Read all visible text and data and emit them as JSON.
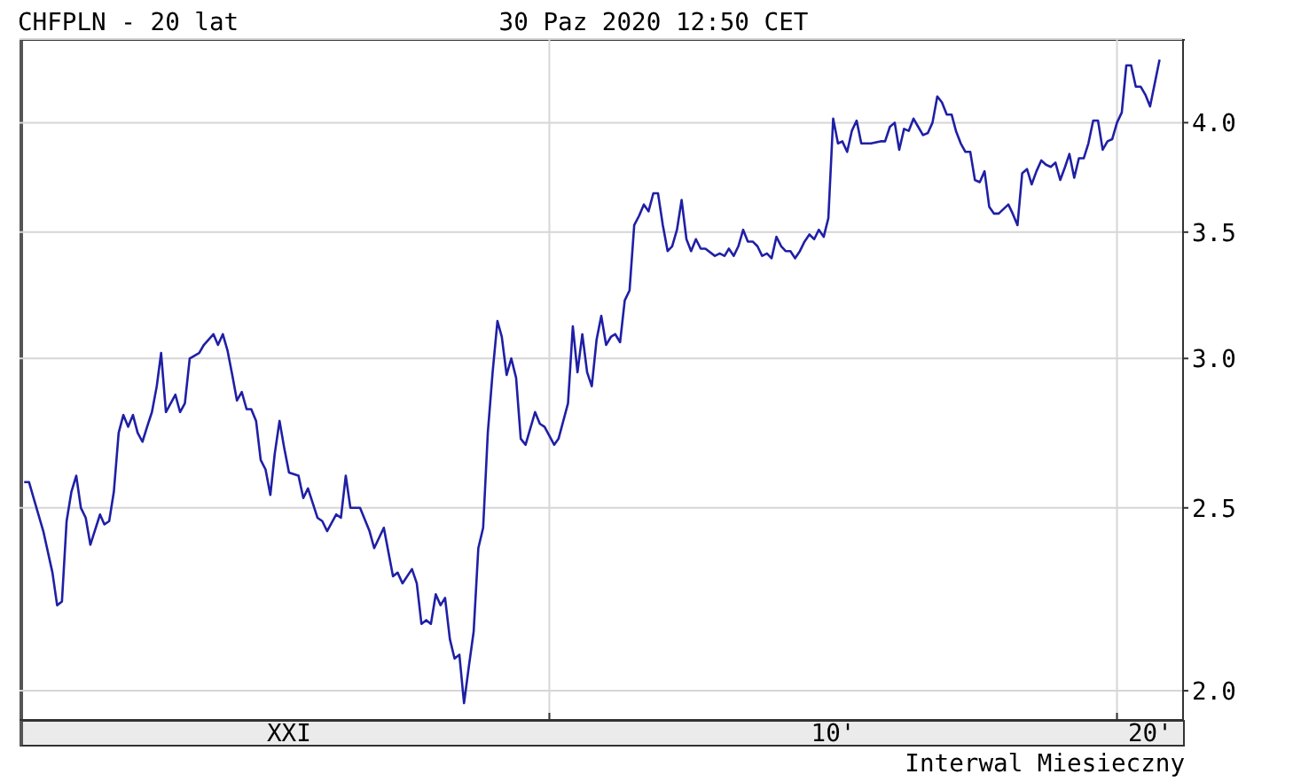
{
  "chart_data": {
    "type": "line",
    "title": "CHFPLN - 20 lat",
    "subtitle": "30 Paz 2020 12:50 CET",
    "annotations": [
      "Interwal Miesieczny"
    ],
    "x": [
      "2000-10",
      "2000-11",
      "2000-12",
      "2001-02",
      "2001-04",
      "2001-05",
      "2001-06",
      "2001-07",
      "2001-08",
      "2001-09",
      "2001-10",
      "2001-11",
      "2001-12",
      "2002-02",
      "2002-03",
      "2002-04",
      "2002-05",
      "2002-06",
      "2002-07",
      "2002-08",
      "2002-09",
      "2002-10",
      "2002-11",
      "2002-12",
      "2003-01",
      "2003-02",
      "2003-03",
      "2003-04",
      "2003-06",
      "2003-07",
      "2003-08",
      "2003-09",
      "2003-11",
      "2003-12",
      "2004-02",
      "2004-03",
      "2004-04",
      "2004-05",
      "2004-06",
      "2004-07",
      "2004-08",
      "2004-09",
      "2004-10",
      "2004-11",
      "2004-12",
      "2005-01",
      "2005-02",
      "2005-03",
      "2005-04",
      "2005-05",
      "2005-06",
      "2005-08",
      "2005-09",
      "2005-10",
      "2005-12",
      "2006-01",
      "2006-02",
      "2006-04",
      "2006-05",
      "2006-06",
      "2006-07",
      "2006-09",
      "2006-11",
      "2006-12",
      "2007-02",
      "2007-04",
      "2007-05",
      "2007-06",
      "2007-08",
      "2007-09",
      "2007-10",
      "2007-11",
      "2007-12",
      "2008-01",
      "2008-02",
      "2008-03",
      "2008-04",
      "2008-05",
      "2008-06",
      "2008-07",
      "2008-08",
      "2008-09",
      "2008-10",
      "2008-11",
      "2008-12",
      "2009-01",
      "2009-02",
      "2009-03",
      "2009-04",
      "2009-05",
      "2009-06",
      "2009-07",
      "2009-08",
      "2009-10",
      "2009-11",
      "2009-12",
      "2010-02",
      "2010-03",
      "2010-05",
      "2010-06",
      "2010-07",
      "2010-08",
      "2010-09",
      "2010-10",
      "2010-11",
      "2010-12",
      "2011-01",
      "2011-02",
      "2011-03",
      "2011-04",
      "2011-05",
      "2011-06",
      "2011-07",
      "2011-08",
      "2011-09",
      "2011-10",
      "2011-11",
      "2011-12",
      "2012-01",
      "2012-02",
      "2012-03",
      "2012-04",
      "2012-05",
      "2012-06",
      "2012-07",
      "2012-08",
      "2012-09",
      "2012-10",
      "2012-12",
      "2013-01",
      "2013-02",
      "2013-03",
      "2013-04",
      "2013-05",
      "2013-06",
      "2013-07",
      "2013-08",
      "2013-09",
      "2013-10",
      "2013-11",
      "2013-12",
      "2014-01",
      "2014-02",
      "2014-03",
      "2014-04",
      "2014-05",
      "2014-06",
      "2014-07",
      "2014-08",
      "2014-09",
      "2014-10",
      "2014-11",
      "2014-12",
      "2015-01",
      "2015-02",
      "2015-03",
      "2015-04",
      "2015-05",
      "2015-06",
      "2015-07",
      "2015-09",
      "2015-11",
      "2015-12",
      "2016-01",
      "2016-02",
      "2016-03",
      "2016-04",
      "2016-05",
      "2016-06",
      "2016-07",
      "2016-08",
      "2016-09",
      "2016-10",
      "2016-11",
      "2016-12",
      "2017-01",
      "2017-02",
      "2017-03",
      "2017-04",
      "2017-05",
      "2017-06",
      "2017-07",
      "2017-08",
      "2017-09",
      "2017-10",
      "2017-11",
      "2017-12",
      "2018-02",
      "2018-03",
      "2018-04",
      "2018-05",
      "2018-06",
      "2018-07",
      "2018-08",
      "2018-09",
      "2018-10",
      "2018-11",
      "2018-12",
      "2019-01",
      "2019-02",
      "2019-03",
      "2019-04",
      "2019-05",
      "2019-06",
      "2019-07",
      "2019-08",
      "2019-09",
      "2019-10",
      "2019-11",
      "2019-12",
      "2020-01",
      "2020-02",
      "2020-03",
      "2020-04",
      "2020-05",
      "2020-06",
      "2020-07",
      "2020-08",
      "2020-10"
    ],
    "values": [
      2.58,
      2.58,
      2.53,
      2.43,
      2.31,
      2.22,
      2.23,
      2.46,
      2.55,
      2.6,
      2.5,
      2.47,
      2.39,
      2.48,
      2.45,
      2.46,
      2.55,
      2.74,
      2.8,
      2.76,
      2.8,
      2.74,
      2.71,
      2.76,
      2.81,
      2.9,
      3.02,
      2.81,
      2.87,
      2.81,
      2.84,
      3.0,
      3.02,
      3.05,
      3.09,
      3.05,
      3.09,
      3.03,
      2.94,
      2.85,
      2.88,
      2.82,
      2.82,
      2.78,
      2.65,
      2.62,
      2.54,
      2.67,
      2.78,
      2.69,
      2.61,
      2.6,
      2.53,
      2.56,
      2.47,
      2.46,
      2.43,
      2.48,
      2.47,
      2.6,
      2.5,
      2.5,
      2.43,
      2.38,
      2.44,
      2.3,
      2.31,
      2.28,
      2.32,
      2.28,
      2.17,
      2.18,
      2.17,
      2.25,
      2.22,
      2.24,
      2.13,
      2.08,
      2.09,
      1.97,
      2.06,
      2.15,
      2.38,
      2.44,
      2.74,
      2.95,
      3.14,
      3.08,
      2.94,
      3.0,
      2.93,
      2.72,
      2.7,
      2.81,
      2.77,
      2.76,
      2.7,
      2.72,
      2.84,
      3.12,
      2.95,
      3.09,
      2.95,
      2.9,
      3.07,
      3.16,
      3.05,
      3.08,
      3.09,
      3.06,
      3.22,
      3.26,
      3.53,
      3.57,
      3.62,
      3.59,
      3.67,
      3.67,
      3.53,
      3.42,
      3.44,
      3.51,
      3.64,
      3.47,
      3.42,
      3.47,
      3.43,
      3.43,
      3.4,
      3.41,
      3.4,
      3.43,
      3.4,
      3.44,
      3.51,
      3.46,
      3.46,
      3.44,
      3.4,
      3.41,
      3.39,
      3.48,
      3.44,
      3.42,
      3.42,
      3.39,
      3.42,
      3.46,
      3.49,
      3.47,
      3.51,
      3.48,
      3.56,
      4.02,
      3.9,
      3.91,
      3.86,
      3.96,
      4.01,
      3.9,
      3.9,
      3.91,
      3.91,
      3.98,
      4.0,
      3.87,
      3.97,
      3.96,
      4.02,
      3.98,
      3.94,
      3.95,
      4.0,
      4.13,
      4.1,
      4.04,
      4.04,
      3.96,
      3.9,
      3.86,
      3.86,
      3.73,
      3.72,
      3.77,
      3.61,
      3.58,
      3.58,
      3.62,
      3.58,
      3.53,
      3.76,
      3.78,
      3.71,
      3.77,
      3.82,
      3.8,
      3.79,
      3.81,
      3.73,
      3.79,
      3.85,
      3.74,
      3.83,
      3.83,
      3.9,
      4.01,
      4.01,
      3.87,
      3.91,
      3.92,
      4.0,
      4.05,
      4.29,
      4.29,
      4.18,
      4.18,
      4.14,
      4.08,
      4.32
    ],
    "color": "#1f1fa6",
    "marker": "none",
    "log": true,
    "grid": true,
    "xlim": [
      "2000-09",
      "2021-03"
    ],
    "xticks": [
      {
        "value": "2005-06",
        "label": "XXI"
      },
      {
        "value": "2010-01",
        "label": null
      },
      {
        "value": "2015-01",
        "label": "10'"
      },
      {
        "value": "2020-01",
        "label": null
      },
      {
        "value": "2020-08",
        "label": "20'"
      }
    ],
    "ylim": [
      1.93,
      4.43
    ],
    "yticks": [
      {
        "value": 2,
        "label": "2.0"
      },
      {
        "value": 2.5,
        "label": "2.5"
      },
      {
        "value": 3,
        "label": "3.0"
      },
      {
        "value": 3.5,
        "label": "3.5"
      },
      {
        "value": 4,
        "label": "4.0"
      }
    ]
  }
}
